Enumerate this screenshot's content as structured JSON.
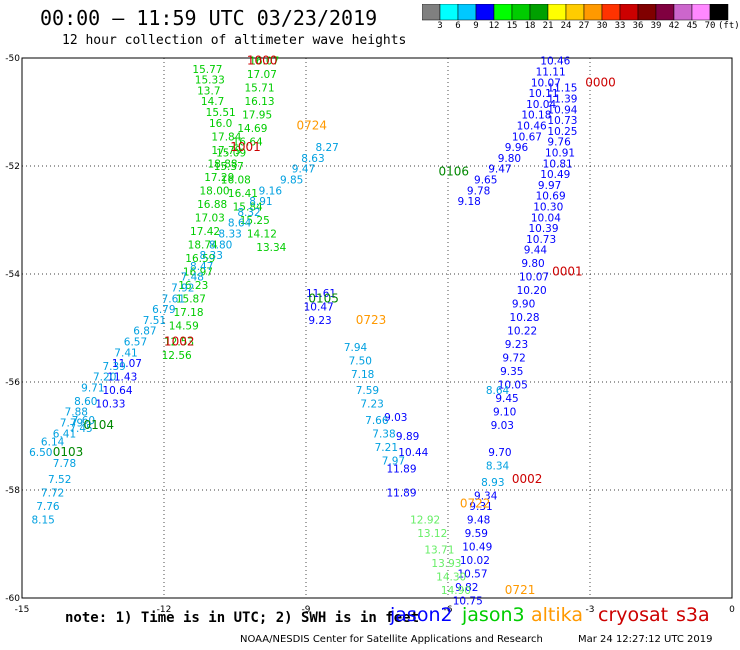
{
  "header": {
    "title": "00:00 – 11:59 UTC 03/23/2019",
    "subtitle": "12 hour collection of altimeter wave heights"
  },
  "colorbar": {
    "colors": [
      "#808080",
      "#00ffff",
      "#00c8ff",
      "#0000ff",
      "#00ff00",
      "#00cc00",
      "#00a000",
      "#ffff00",
      "#ffcc00",
      "#ff9900",
      "#ff3300",
      "#cc0000",
      "#800000",
      "#800040",
      "#cc66cc",
      "#ff88ff",
      "#000000"
    ],
    "labels": [
      "3",
      "6",
      "9",
      "12",
      "15",
      "18",
      "21",
      "24",
      "27",
      "30",
      "33",
      "36",
      "39",
      "42",
      "45",
      "70",
      "(ft)"
    ]
  },
  "note": "note:  1) Time is in UTC;  2) SWH is in feet",
  "legend": [
    {
      "name": "jason2",
      "color": "#0000ff"
    },
    {
      "name": "jason3",
      "color": "#00cc00"
    },
    {
      "name": "altika",
      "color": "#ff9900"
    },
    {
      "name": "cryosat",
      "color": "#cc0000"
    },
    {
      "name": "s3a",
      "color": "#cc0000"
    }
  ],
  "footer": {
    "org": "NOAA/NESDIS Center for Satellite Applications and Research",
    "timestamp": "Mar 24 12:27:12 UTC 2019"
  },
  "chart_data": {
    "type": "scatter",
    "xlim": [
      -15,
      0
    ],
    "ylim": [
      -60,
      -50
    ],
    "xticks": [
      -15,
      -12,
      -9,
      -6,
      -3,
      0
    ],
    "yticks": [
      -50,
      -52,
      -54,
      -56,
      -58,
      -60
    ],
    "grid": true,
    "series": [
      {
        "name": "jason3",
        "color": "#00cc00",
        "points": [
          [
            -11.4,
            -50.2,
            "15.77"
          ],
          [
            -11.35,
            -50.4,
            "15.33"
          ],
          [
            -11.3,
            -50.6,
            "13.7"
          ],
          [
            -11.22,
            -50.8,
            "14.7"
          ],
          [
            -11.12,
            -51.0,
            "15.51"
          ],
          [
            -11.05,
            -51.2,
            "16.0"
          ],
          [
            -11.0,
            -51.45,
            "17.84"
          ],
          [
            -11.0,
            -51.7,
            "17.79"
          ],
          [
            -11.08,
            -51.95,
            "18.88"
          ],
          [
            -11.15,
            -52.2,
            "17.29"
          ],
          [
            -11.25,
            -52.45,
            "18.00"
          ],
          [
            -11.3,
            -52.7,
            "16.88"
          ],
          [
            -11.35,
            -52.95,
            "17.03"
          ],
          [
            -11.45,
            -53.2,
            "17.42"
          ],
          [
            -11.5,
            -53.45,
            "18.74"
          ],
          [
            -11.55,
            -53.7,
            "16.59"
          ],
          [
            -11.6,
            -53.95,
            "16.97"
          ],
          [
            -11.7,
            -54.2,
            "16.23"
          ],
          [
            -11.75,
            -54.45,
            "15.87"
          ],
          [
            -11.8,
            -54.7,
            "17.18"
          ],
          [
            -11.9,
            -54.95,
            "14.59"
          ],
          [
            -12.0,
            -55.25,
            "12.53"
          ],
          [
            -12.05,
            -55.5,
            "12.56"
          ],
          [
            -10.2,
            -50.05,
            "16.07"
          ],
          [
            -10.25,
            -50.3,
            "17.07"
          ],
          [
            -10.3,
            -50.55,
            "15.71"
          ],
          [
            -10.3,
            -50.8,
            "16.13"
          ],
          [
            -10.35,
            -51.05,
            "17.95"
          ],
          [
            -10.45,
            -51.3,
            "14.69"
          ],
          [
            -10.55,
            -51.55,
            "16.64"
          ],
          [
            -10.9,
            -51.75,
            "15.09"
          ],
          [
            -10.95,
            -52.0,
            "15.37"
          ],
          [
            -10.8,
            -52.25,
            "16.08"
          ],
          [
            -10.65,
            -52.5,
            "16.41"
          ],
          [
            -10.55,
            -52.75,
            "15.84"
          ],
          [
            -10.4,
            -53.0,
            "15.25"
          ],
          [
            -10.25,
            -53.25,
            "14.12"
          ],
          [
            -10.05,
            -53.5,
            "13.34"
          ]
        ]
      },
      {
        "name": "jason2",
        "color": "#0000ff",
        "points": [
          [
            -13.1,
            -55.65,
            "11.07"
          ],
          [
            -13.2,
            -55.9,
            "11.43"
          ],
          [
            -13.3,
            -56.15,
            "10.64"
          ],
          [
            -13.45,
            -56.4,
            "10.33"
          ],
          [
            -4.05,
            -50.05,
            "10.46"
          ],
          [
            -4.15,
            -50.25,
            "11.11"
          ],
          [
            -4.25,
            -50.45,
            "10.07"
          ],
          [
            -4.3,
            -50.65,
            "10.11"
          ],
          [
            -4.35,
            -50.85,
            "10.04"
          ],
          [
            -4.45,
            -51.05,
            "10.18"
          ],
          [
            -4.55,
            -51.25,
            "10.46"
          ],
          [
            -4.65,
            -51.45,
            "10.67"
          ],
          [
            -4.8,
            -51.65,
            "9.96"
          ],
          [
            -4.95,
            -51.85,
            "9.80"
          ],
          [
            -5.15,
            -52.05,
            "9.47"
          ],
          [
            -5.45,
            -52.25,
            "9.65"
          ],
          [
            -5.6,
            -52.45,
            "9.78"
          ],
          [
            -5.8,
            -52.65,
            "9.18"
          ],
          [
            -3.9,
            -50.55,
            "11.15"
          ],
          [
            -3.9,
            -50.75,
            "11.39"
          ],
          [
            -3.9,
            -50.95,
            "10.94"
          ],
          [
            -3.9,
            -51.15,
            "10.73"
          ],
          [
            -3.9,
            -51.35,
            "10.25"
          ],
          [
            -3.9,
            -51.55,
            "9.76"
          ],
          [
            -3.95,
            -51.75,
            "10.91"
          ],
          [
            -4.0,
            -51.95,
            "10.81"
          ],
          [
            -4.05,
            -52.15,
            "10.49"
          ],
          [
            -4.1,
            -52.35,
            "9.97"
          ],
          [
            -4.15,
            -52.55,
            "10.69"
          ],
          [
            -4.2,
            -52.75,
            "10.30"
          ],
          [
            -4.25,
            -52.95,
            "10.04"
          ],
          [
            -4.3,
            -53.15,
            "10.39"
          ],
          [
            -4.35,
            -53.35,
            "10.73"
          ],
          [
            -4.4,
            -53.55,
            "9.44"
          ],
          [
            -4.45,
            -53.8,
            "9.80"
          ],
          [
            -4.5,
            -54.05,
            "10.07"
          ],
          [
            -4.55,
            -54.3,
            "10.20"
          ],
          [
            -4.65,
            -54.55,
            "9.90"
          ],
          [
            -4.7,
            -54.8,
            "10.28"
          ],
          [
            -4.75,
            -55.05,
            "10.22"
          ],
          [
            -4.8,
            -55.3,
            "9.23"
          ],
          [
            -4.85,
            -55.55,
            "9.72"
          ],
          [
            -4.9,
            -55.8,
            "9.35"
          ],
          [
            -4.95,
            -56.05,
            "10.05"
          ],
          [
            -5.0,
            -56.3,
            "9.45"
          ],
          [
            -5.05,
            -56.55,
            "9.10"
          ],
          [
            -5.1,
            -56.8,
            "9.03"
          ],
          [
            -5.15,
            -57.3,
            "9.70"
          ],
          [
            -5.45,
            -58.1,
            "9.34"
          ],
          [
            -5.55,
            -58.3,
            "9.31"
          ],
          [
            -5.6,
            -58.55,
            "9.48"
          ],
          [
            -5.65,
            -58.8,
            "9.59"
          ],
          [
            -5.7,
            -59.05,
            "10.49"
          ],
          [
            -5.75,
            -59.3,
            "10.02"
          ],
          [
            -5.8,
            -59.55,
            "10.57"
          ],
          [
            -5.85,
            -59.8,
            "9.82"
          ],
          [
            -5.9,
            -60.05,
            "10.75"
          ],
          [
            -9.0,
            -54.35,
            "11.61"
          ],
          [
            -9.05,
            -54.6,
            "10.47"
          ],
          [
            -8.95,
            -54.85,
            "9.23"
          ],
          [
            -7.35,
            -56.65,
            "9.03"
          ],
          [
            -7.1,
            -57.0,
            "9.89"
          ],
          [
            -7.05,
            -57.3,
            "10.44"
          ],
          [
            -7.3,
            -57.6,
            "11.89"
          ],
          [
            -7.3,
            -58.05,
            "11.89"
          ]
        ]
      },
      {
        "name": "altika",
        "color": "#ff9900",
        "points": [
          [
            -9.2,
            -51.25,
            "0724"
          ],
          [
            -7.95,
            -54.85,
            "0723"
          ],
          [
            -5.75,
            -58.25,
            "0722"
          ],
          [
            -4.8,
            -59.85,
            "0721"
          ]
        ]
      },
      {
        "name": "cryosat",
        "color": "#cc0000",
        "points": [
          [
            -3.1,
            -50.45,
            "0000"
          ],
          [
            -3.8,
            -53.95,
            "0001"
          ],
          [
            -4.65,
            -57.8,
            "0002"
          ],
          [
            -10.25,
            -50.05,
            "1000"
          ],
          [
            -10.6,
            -51.65,
            "1001"
          ],
          [
            -12.0,
            -55.25,
            "1002"
          ]
        ]
      },
      {
        "name": "s3a",
        "color": "#00a0e0",
        "points": [
          [
            -14.85,
            -57.3,
            "6.50"
          ],
          [
            -14.6,
            -57.1,
            "6.14"
          ],
          [
            -14.35,
            -56.95,
            "6.41"
          ],
          [
            -14.2,
            -56.75,
            "7.79"
          ],
          [
            -14.1,
            -56.55,
            "7.88"
          ],
          [
            -13.9,
            -56.35,
            "8.60"
          ],
          [
            -13.75,
            -56.1,
            "9.71"
          ],
          [
            -13.5,
            -55.9,
            "7.20"
          ],
          [
            -13.3,
            -55.7,
            "7.39"
          ],
          [
            -13.05,
            -55.45,
            "7.41"
          ],
          [
            -12.85,
            -55.25,
            "6.57"
          ],
          [
            -12.65,
            -55.05,
            "6.87"
          ],
          [
            -12.45,
            -54.85,
            "7.51"
          ],
          [
            -12.25,
            -54.65,
            "6.79"
          ],
          [
            -12.05,
            -54.45,
            "7.61"
          ],
          [
            -11.85,
            -54.25,
            "7.92"
          ],
          [
            -11.65,
            -54.05,
            "7.48"
          ],
          [
            -11.45,
            -53.85,
            "8.47"
          ],
          [
            -11.25,
            -53.65,
            "8.33"
          ],
          [
            -11.05,
            -53.45,
            "8.80"
          ],
          [
            -10.85,
            -53.25,
            "8.33"
          ],
          [
            -10.65,
            -53.05,
            "8.64"
          ],
          [
            -10.45,
            -52.85,
            "8.32"
          ],
          [
            -10.2,
            -52.65,
            "8.91"
          ],
          [
            -10.0,
            -52.45,
            "9.16"
          ],
          [
            -9.55,
            -52.25,
            "9.85"
          ],
          [
            -9.3,
            -52.05,
            "9.47"
          ],
          [
            -9.1,
            -51.85,
            "8.63"
          ],
          [
            -8.8,
            -51.65,
            "8.27"
          ],
          [
            -14.35,
            -57.5,
            "7.78"
          ],
          [
            -14.45,
            -57.8,
            "7.52"
          ],
          [
            -14.6,
            -58.05,
            "7.72"
          ],
          [
            -14.7,
            -58.3,
            "7.76"
          ],
          [
            -14.8,
            -58.55,
            "8.15"
          ],
          [
            -14.0,
            -56.85,
            "7.45"
          ],
          [
            -13.95,
            -56.7,
            "7.60"
          ],
          [
            -8.2,
            -55.35,
            "7.94"
          ],
          [
            -8.1,
            -55.6,
            "7.50"
          ],
          [
            -8.05,
            -55.85,
            "7.18"
          ],
          [
            -7.95,
            -56.15,
            "7.59"
          ],
          [
            -7.85,
            -56.4,
            "7.23"
          ],
          [
            -7.75,
            -56.7,
            "7.66"
          ],
          [
            -7.6,
            -56.95,
            "7.38"
          ],
          [
            -7.55,
            -57.2,
            "7.21"
          ],
          [
            -7.4,
            -57.45,
            "7.97"
          ],
          [
            -5.2,
            -56.15,
            "8.64"
          ],
          [
            -5.2,
            -57.55,
            "8.34"
          ],
          [
            -5.3,
            -57.85,
            "8.93"
          ]
        ]
      },
      {
        "name": "jason3-b",
        "color": "#66ee66",
        "points": [
          [
            -6.8,
            -58.55,
            "12.92"
          ],
          [
            -6.65,
            -58.8,
            "13.12"
          ],
          [
            -6.5,
            -59.1,
            "13.71"
          ],
          [
            -6.35,
            -59.35,
            "13.93"
          ],
          [
            -6.25,
            -59.6,
            "14.30"
          ],
          [
            -6.15,
            -59.85,
            "14.90"
          ]
        ]
      },
      {
        "name": "s3a-pass",
        "color": "#008800",
        "points": [
          [
            -13.7,
            -56.8,
            "0104"
          ],
          [
            -14.35,
            -57.3,
            "0103"
          ],
          [
            -8.95,
            -54.45,
            "0105"
          ],
          [
            -6.2,
            -52.1,
            "0106"
          ]
        ]
      }
    ]
  }
}
